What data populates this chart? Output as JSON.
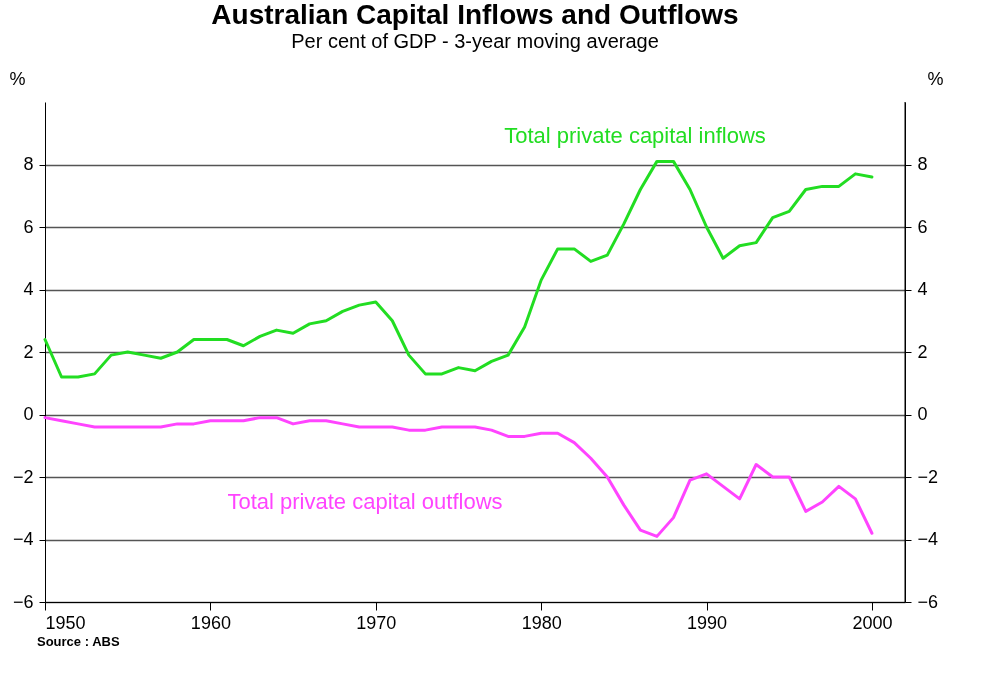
{
  "chart_data": {
    "type": "line",
    "title": "Australian Capital Inflows and Outflows",
    "subtitle": "Per cent of GDP -  3-year moving average",
    "ylabel": "%",
    "y2label": "%",
    "annotations": [
      "Source : ABS"
    ],
    "x": [
      1950,
      1951,
      1952,
      1953,
      1954,
      1955,
      1956,
      1957,
      1958,
      1959,
      1960,
      1961,
      1962,
      1963,
      1964,
      1965,
      1966,
      1967,
      1968,
      1969,
      1970,
      1971,
      1972,
      1973,
      1974,
      1975,
      1976,
      1977,
      1978,
      1979,
      1980,
      1981,
      1982,
      1983,
      1984,
      1985,
      1986,
      1987,
      1988,
      1989,
      1990,
      1991,
      1992,
      1993,
      1994,
      1995,
      1996,
      1997,
      1998,
      1999,
      2000
    ],
    "series": [
      {
        "name": "Total private capital inflows",
        "color": "#22dd22",
        "values": [
          2.4,
          1.2,
          1.2,
          1.3,
          1.9,
          2.0,
          1.9,
          1.8,
          2.0,
          2.4,
          2.4,
          2.4,
          2.2,
          2.5,
          2.7,
          2.6,
          2.9,
          3.0,
          3.3,
          3.5,
          3.6,
          3.0,
          1.9,
          1.3,
          1.3,
          1.5,
          1.4,
          1.7,
          1.9,
          2.8,
          4.3,
          5.3,
          5.3,
          4.9,
          5.1,
          6.1,
          7.2,
          8.1,
          8.1,
          7.2,
          6.0,
          5.0,
          5.4,
          5.5,
          6.3,
          6.5,
          7.2,
          7.3,
          7.3,
          7.7,
          7.6
        ]
      },
      {
        "name": "Total private capital outflows",
        "color": "#ff44ff",
        "values": [
          -0.1,
          -0.2,
          -0.3,
          -0.4,
          -0.4,
          -0.4,
          -0.4,
          -0.4,
          -0.3,
          -0.3,
          -0.2,
          -0.2,
          -0.2,
          -0.1,
          -0.1,
          -0.3,
          -0.2,
          -0.2,
          -0.3,
          -0.4,
          -0.4,
          -0.4,
          -0.5,
          -0.5,
          -0.4,
          -0.4,
          -0.4,
          -0.5,
          -0.7,
          -0.7,
          -0.6,
          -0.6,
          -0.9,
          -1.4,
          -2.0,
          -2.9,
          -3.7,
          -3.9,
          -3.3,
          -2.1,
          -1.9,
          -2.3,
          -2.7,
          -1.6,
          -2.0,
          -2.0,
          -3.1,
          -2.8,
          -2.3,
          -2.7,
          -3.8
        ]
      }
    ],
    "xlim": [
      1950,
      2002
    ],
    "xticks": [
      1950,
      1960,
      1970,
      1980,
      1990,
      2000
    ],
    "ylim": [
      -6,
      10
    ],
    "yticks": [
      -6,
      -4,
      -2,
      0,
      2,
      4,
      6,
      8
    ],
    "y2lim": [
      -6,
      10
    ],
    "y2ticks": [
      -6,
      -4,
      -2,
      0,
      2,
      4,
      6,
      8
    ],
    "grid": "y",
    "legend": false,
    "line_style": "solid",
    "marker": "none"
  }
}
